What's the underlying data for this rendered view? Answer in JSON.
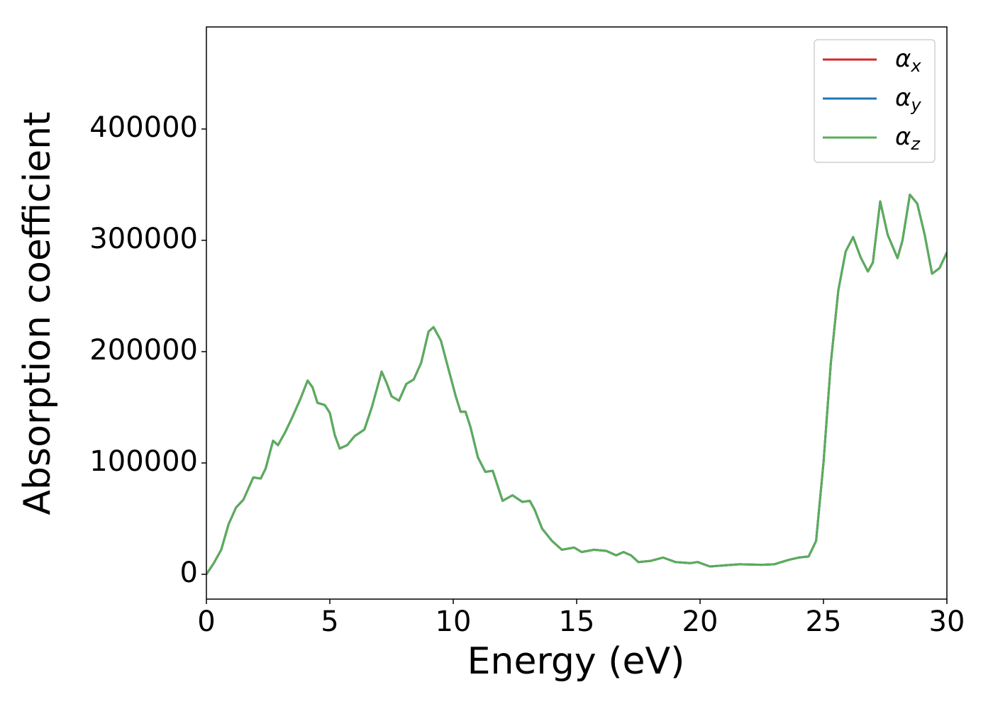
{
  "chart_data": {
    "type": "line",
    "xlabel": "Energy (eV)",
    "ylabel": "Absorption coefficient",
    "x": [
      0,
      0.3,
      0.6,
      0.9,
      1.2,
      1.5,
      1.9,
      2.2,
      2.4,
      2.7,
      2.9,
      3.2,
      3.5,
      3.8,
      4.1,
      4.3,
      4.5,
      4.8,
      5.0,
      5.2,
      5.4,
      5.7,
      6.0,
      6.4,
      6.7,
      7.1,
      7.3,
      7.5,
      7.8,
      8.1,
      8.4,
      8.7,
      9.0,
      9.2,
      9.5,
      9.8,
      10.1,
      10.3,
      10.5,
      10.7,
      11.0,
      11.3,
      11.6,
      12.0,
      12.4,
      12.8,
      13.1,
      13.3,
      13.6,
      14.0,
      14.4,
      14.9,
      15.2,
      15.7,
      16.2,
      16.6,
      16.9,
      17.2,
      17.5,
      18.0,
      18.5,
      19.0,
      19.6,
      19.9,
      20.4,
      21.0,
      21.6,
      22.5,
      23.0,
      23.6,
      24.0,
      24.4,
      24.7,
      25.0,
      25.3,
      25.6,
      25.9,
      26.2,
      26.5,
      26.8,
      27.0,
      27.3,
      27.6,
      28.0,
      28.2,
      28.5,
      28.8,
      29.1,
      29.4,
      29.7,
      30.0
    ],
    "series": [
      {
        "name": "αx",
        "color": "#d62728",
        "values": [
          0,
          10000,
          22000,
          45000,
          60000,
          67000,
          87000,
          86000,
          95000,
          120000,
          116000,
          128000,
          142000,
          157000,
          174000,
          168000,
          154000,
          152000,
          145000,
          125000,
          113000,
          116000,
          124000,
          130000,
          150000,
          182000,
          172000,
          160000,
          156000,
          171000,
          175000,
          190000,
          218000,
          222000,
          210000,
          185000,
          160000,
          146000,
          146000,
          132000,
          105000,
          92000,
          93000,
          66000,
          71000,
          65000,
          66000,
          58000,
          41000,
          30000,
          22000,
          24000,
          20000,
          22000,
          21000,
          17000,
          20000,
          17000,
          11000,
          12000,
          15000,
          11000,
          10000,
          11000,
          7000,
          8000,
          9000,
          8500,
          9000,
          13000,
          15000,
          16000,
          30000,
          100000,
          190000,
          255000,
          290000,
          303000,
          285000,
          272000,
          280000,
          335000,
          305000,
          284000,
          300000,
          341000,
          333000,
          305000,
          270000,
          275000,
          289000
        ]
      },
      {
        "name": "αy",
        "color": "#1f77b4",
        "values": [
          0,
          10000,
          22000,
          45000,
          60000,
          67000,
          87000,
          86000,
          95000,
          120000,
          116000,
          128000,
          142000,
          157000,
          174000,
          168000,
          154000,
          152000,
          145000,
          125000,
          113000,
          116000,
          124000,
          130000,
          150000,
          182000,
          172000,
          160000,
          156000,
          171000,
          175000,
          190000,
          218000,
          222000,
          210000,
          185000,
          160000,
          146000,
          146000,
          132000,
          105000,
          92000,
          93000,
          66000,
          71000,
          65000,
          66000,
          58000,
          41000,
          30000,
          22000,
          24000,
          20000,
          22000,
          21000,
          17000,
          20000,
          17000,
          11000,
          12000,
          15000,
          11000,
          10000,
          11000,
          7000,
          8000,
          9000,
          8500,
          9000,
          13000,
          15000,
          16000,
          30000,
          100000,
          190000,
          255000,
          290000,
          303000,
          285000,
          272000,
          280000,
          335000,
          305000,
          284000,
          300000,
          341000,
          333000,
          305000,
          270000,
          275000,
          289000
        ]
      },
      {
        "name": "αz",
        "color": "#5aad5a",
        "values": [
          0,
          10000,
          22000,
          45000,
          60000,
          67000,
          87000,
          86000,
          95000,
          120000,
          116000,
          128000,
          142000,
          157000,
          174000,
          168000,
          154000,
          152000,
          145000,
          125000,
          113000,
          116000,
          124000,
          130000,
          150000,
          182000,
          172000,
          160000,
          156000,
          171000,
          175000,
          190000,
          218000,
          222000,
          210000,
          185000,
          160000,
          146000,
          146000,
          132000,
          105000,
          92000,
          93000,
          66000,
          71000,
          65000,
          66000,
          58000,
          41000,
          30000,
          22000,
          24000,
          20000,
          22000,
          21000,
          17000,
          20000,
          17000,
          11000,
          12000,
          15000,
          11000,
          10000,
          11000,
          7000,
          8000,
          9000,
          8500,
          9000,
          13000,
          15000,
          16000,
          30000,
          100000,
          190000,
          255000,
          290000,
          303000,
          285000,
          272000,
          280000,
          335000,
          305000,
          284000,
          300000,
          341000,
          333000,
          305000,
          270000,
          275000,
          289000
        ]
      }
    ],
    "xlim": [
      0,
      30
    ],
    "xticks": [
      0,
      5,
      10,
      15,
      20,
      25,
      30
    ],
    "ylim": [
      -22300,
      491700
    ],
    "yticks": [
      0,
      100000,
      200000,
      300000,
      400000
    ],
    "grid": false,
    "legend": "upper right"
  }
}
